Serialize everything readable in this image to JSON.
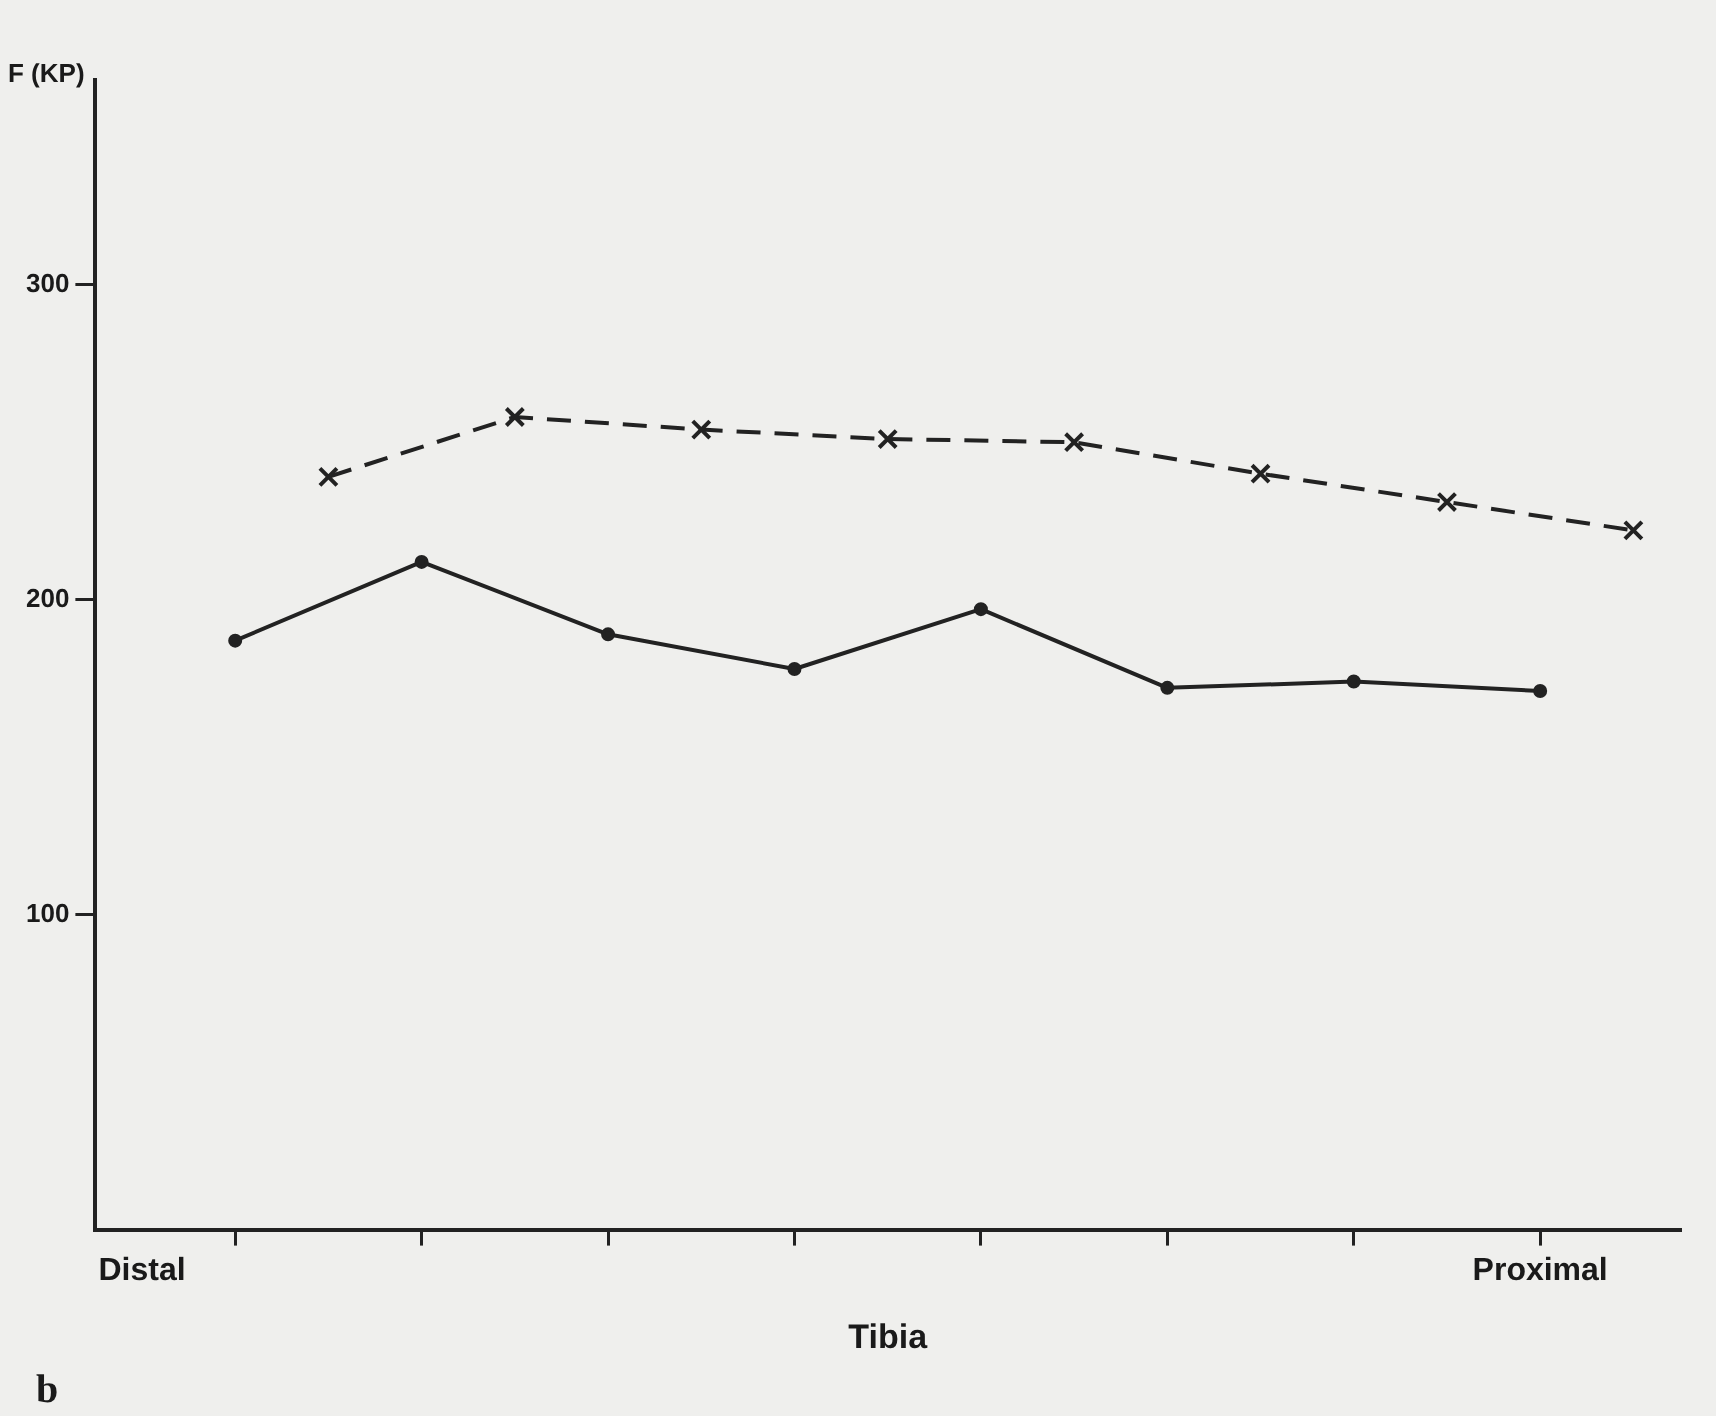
{
  "chart_data": {
    "type": "line",
    "ylabel": "F (KP)",
    "xlabel": "Tibia",
    "annotations": [
      "b"
    ],
    "categories": [
      "Distal",
      null,
      null,
      null,
      null,
      null,
      null,
      null,
      null,
      null,
      null,
      null,
      null,
      null,
      null,
      "Proximal",
      null
    ],
    "ylim": [
      0,
      365
    ],
    "yticks": [
      100,
      200,
      300
    ],
    "grid": false,
    "legend": false,
    "series": [
      {
        "color": "#222222",
        "marker": "circle",
        "line_style": "solid",
        "values": [
          null,
          187,
          null,
          212,
          null,
          189,
          null,
          178,
          null,
          197,
          null,
          172,
          null,
          174,
          null,
          171,
          null
        ]
      },
      {
        "color": "#222222",
        "marker": "cross",
        "line_style": "dashed",
        "values": [
          null,
          null,
          239,
          null,
          258,
          null,
          254,
          null,
          251,
          null,
          250,
          null,
          240,
          null,
          231,
          null,
          222
        ]
      }
    ]
  }
}
